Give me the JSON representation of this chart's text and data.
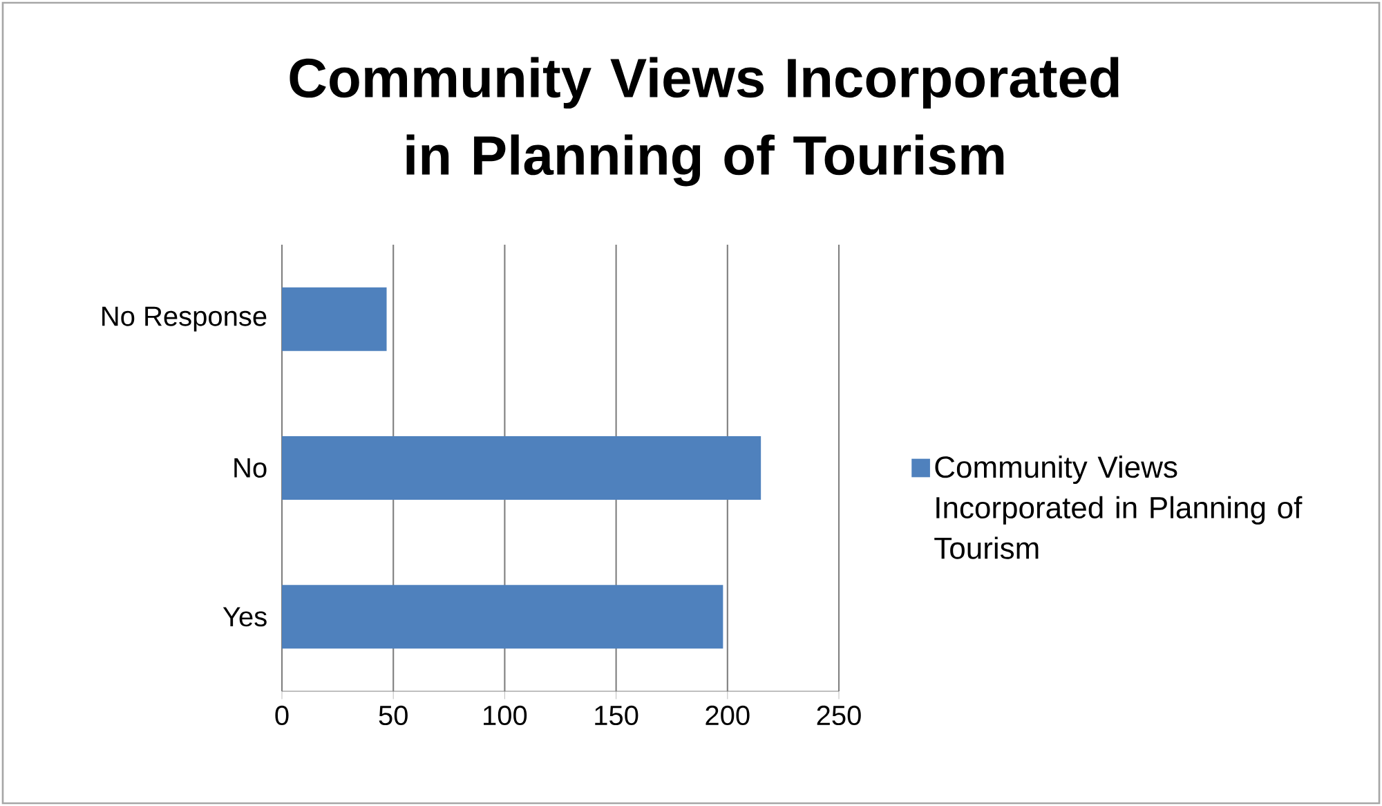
{
  "chart_data": {
    "type": "bar",
    "orientation": "horizontal",
    "title": "Community Views Incorporated in Planning of Tourism",
    "categories": [
      "No Response",
      "No",
      "Yes"
    ],
    "series": [
      {
        "name": "Community Views Incorporated in Planning of Tourism",
        "color": "#4f81bd",
        "values": [
          47,
          215,
          198
        ]
      }
    ],
    "xlim": [
      0,
      250
    ],
    "xticks": [
      0,
      50,
      100,
      150,
      200,
      250
    ],
    "grid": "x",
    "legend": "right"
  }
}
